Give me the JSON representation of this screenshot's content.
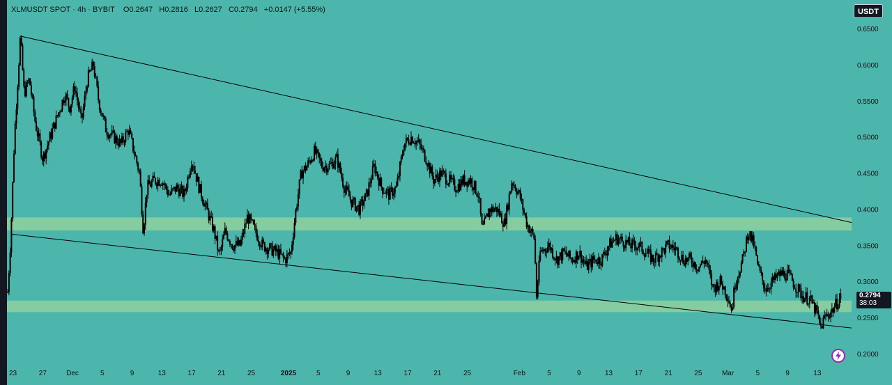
{
  "header": {
    "symbol": "XLMUSDT SPOT",
    "interval": "4h",
    "exchange": "BYBIT",
    "open": "O0.2647",
    "high": "H0.2816",
    "low": "L0.2627",
    "close": "C0.2794",
    "change": "+0.0147 (+5.55%)"
  },
  "currency_button": "USDT",
  "last_price": {
    "value": "0.2794",
    "countdown": "38:03"
  },
  "colors": {
    "background": "#4db6ac",
    "zone": "#8fd19e",
    "candle": "#000000",
    "frame": "#131722",
    "flash_ring": "#9c27b0"
  },
  "icons": {
    "flash_button": "lightning-icon"
  },
  "chart_data": {
    "type": "candlestick",
    "symbol": "XLMUSDT SPOT",
    "interval": "4h",
    "ylim": [
      0.19,
      0.66
    ],
    "y_ticks": [
      "0.6500",
      "0.6000",
      "0.5500",
      "0.5000",
      "0.4500",
      "0.4000",
      "0.3500",
      "0.3000",
      "0.2500",
      "0.2000"
    ],
    "x_ticks": [
      "23",
      "27",
      "Dec",
      "5",
      "9",
      "13",
      "17",
      "21",
      "25",
      "2025",
      "5",
      "9",
      "13",
      "17",
      "21",
      "25",
      "Feb",
      "5",
      "9",
      "13",
      "17",
      "21",
      "25",
      "Mar",
      "5",
      "9",
      "13"
    ],
    "x_tick_values": [
      0,
      4,
      8,
      12,
      16,
      20,
      24,
      28,
      32,
      37,
      41,
      45,
      49,
      53,
      57,
      61,
      68,
      72,
      76,
      80,
      84,
      88,
      92,
      96,
      100,
      104,
      108
    ],
    "x_range": [
      -0.8,
      112.6
    ],
    "close_path": [
      [
        -0.7,
        0.285
      ],
      [
        -0.3,
        0.36
      ],
      [
        0.2,
        0.5
      ],
      [
        1.0,
        0.64
      ],
      [
        1.5,
        0.56
      ],
      [
        2.2,
        0.58
      ],
      [
        3,
        0.52
      ],
      [
        4,
        0.47
      ],
      [
        5,
        0.5
      ],
      [
        6,
        0.53
      ],
      [
        7,
        0.56
      ],
      [
        7.6,
        0.54
      ],
      [
        8.3,
        0.57
      ],
      [
        9.2,
        0.52
      ],
      [
        10,
        0.58
      ],
      [
        10.8,
        0.6
      ],
      [
        11.5,
        0.55
      ],
      [
        12.5,
        0.51
      ],
      [
        13.5,
        0.5
      ],
      [
        14.5,
        0.49
      ],
      [
        15.5,
        0.51
      ],
      [
        16,
        0.49
      ],
      [
        17,
        0.45
      ],
      [
        17.5,
        0.37
      ],
      [
        18,
        0.43
      ],
      [
        19,
        0.44
      ],
      [
        20,
        0.44
      ],
      [
        21,
        0.42
      ],
      [
        22,
        0.43
      ],
      [
        23,
        0.42
      ],
      [
        24,
        0.47
      ],
      [
        25,
        0.43
      ],
      [
        26,
        0.4
      ],
      [
        27,
        0.37
      ],
      [
        27.7,
        0.335
      ],
      [
        28.5,
        0.37
      ],
      [
        29.5,
        0.35
      ],
      [
        30.5,
        0.35
      ],
      [
        31.5,
        0.39
      ],
      [
        32.5,
        0.37
      ],
      [
        33.5,
        0.35
      ],
      [
        34.5,
        0.345
      ],
      [
        35.5,
        0.34
      ],
      [
        36.5,
        0.33
      ],
      [
        37.3,
        0.34
      ],
      [
        38,
        0.4
      ],
      [
        38.7,
        0.45
      ],
      [
        39.5,
        0.46
      ],
      [
        40.5,
        0.48
      ],
      [
        41.5,
        0.46
      ],
      [
        42.5,
        0.46
      ],
      [
        43.5,
        0.47
      ],
      [
        44.5,
        0.43
      ],
      [
        45.5,
        0.41
      ],
      [
        46.5,
        0.4
      ],
      [
        47.5,
        0.42
      ],
      [
        48.5,
        0.46
      ],
      [
        49.5,
        0.43
      ],
      [
        50.5,
        0.42
      ],
      [
        51.5,
        0.43
      ],
      [
        52.5,
        0.49
      ],
      [
        53.5,
        0.5
      ],
      [
        54.5,
        0.49
      ],
      [
        55.5,
        0.47
      ],
      [
        56.5,
        0.44
      ],
      [
        57.5,
        0.45
      ],
      [
        58.5,
        0.44
      ],
      [
        59.5,
        0.43
      ],
      [
        60.5,
        0.44
      ],
      [
        61.5,
        0.44
      ],
      [
        62.5,
        0.42
      ],
      [
        63,
        0.37
      ],
      [
        64,
        0.4
      ],
      [
        65,
        0.4
      ],
      [
        66,
        0.38
      ],
      [
        67,
        0.44
      ],
      [
        68,
        0.42
      ],
      [
        69,
        0.38
      ],
      [
        70,
        0.36
      ],
      [
        70.3,
        0.28
      ],
      [
        70.8,
        0.34
      ],
      [
        72,
        0.35
      ],
      [
        73,
        0.33
      ],
      [
        74,
        0.34
      ],
      [
        75,
        0.33
      ],
      [
        76,
        0.34
      ],
      [
        77,
        0.32
      ],
      [
        78,
        0.33
      ],
      [
        79,
        0.33
      ],
      [
        80,
        0.35
      ],
      [
        81,
        0.36
      ],
      [
        82,
        0.355
      ],
      [
        83,
        0.35
      ],
      [
        84,
        0.35
      ],
      [
        85,
        0.34
      ],
      [
        86,
        0.33
      ],
      [
        87,
        0.34
      ],
      [
        88,
        0.35
      ],
      [
        89,
        0.345
      ],
      [
        90,
        0.33
      ],
      [
        91,
        0.33
      ],
      [
        92,
        0.32
      ],
      [
        93,
        0.33
      ],
      [
        94,
        0.29
      ],
      [
        95,
        0.3
      ],
      [
        96,
        0.28
      ],
      [
        96.5,
        0.26
      ],
      [
        97,
        0.3
      ],
      [
        98,
        0.33
      ],
      [
        98.7,
        0.37
      ],
      [
        99.5,
        0.35
      ],
      [
        100,
        0.32
      ],
      [
        101,
        0.29
      ],
      [
        102,
        0.3
      ],
      [
        103,
        0.31
      ],
      [
        104,
        0.31
      ],
      [
        105,
        0.295
      ],
      [
        106,
        0.28
      ],
      [
        107,
        0.275
      ],
      [
        108,
        0.255
      ],
      [
        108.4,
        0.235
      ],
      [
        109,
        0.25
      ],
      [
        110,
        0.26
      ],
      [
        111.2,
        0.2794
      ]
    ],
    "trendlines": [
      {
        "from": [
          1.0,
          0.6395
        ],
        "to": [
          112.6,
          0.3815
        ]
      },
      {
        "from": [
          -0.3,
          0.3655
        ],
        "to": [
          112.6,
          0.2355
        ]
      }
    ],
    "zones": [
      [
        0.3705,
        0.3885
      ],
      [
        0.2575,
        0.2735
      ]
    ]
  }
}
